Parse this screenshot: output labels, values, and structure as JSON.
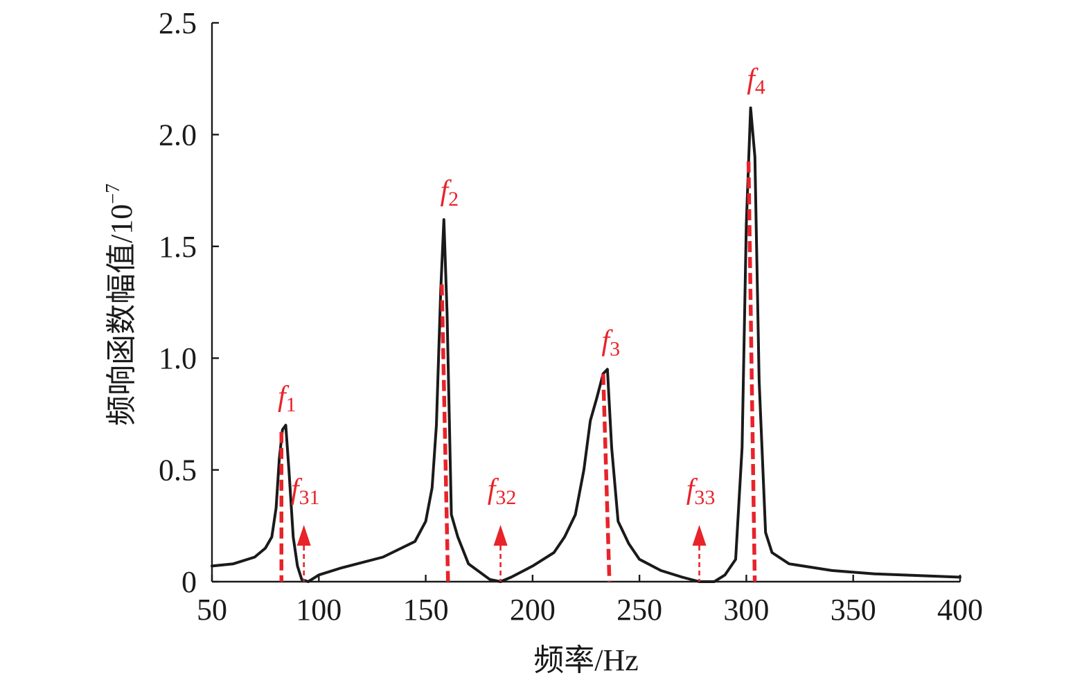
{
  "chart_data": {
    "type": "line",
    "xlabel": "频率/Hz",
    "ylabel": "频响函数幅值/10",
    "ylabel_exponent": "−7",
    "xlim": [
      50,
      400
    ],
    "ylim": [
      0,
      2.5
    ],
    "x_ticks": [
      "50",
      "100",
      "150",
      "200",
      "250",
      "300",
      "350",
      "400"
    ],
    "y_ticks": [
      "0",
      "0.5",
      "1.0",
      "1.5",
      "2.0",
      "2.5"
    ],
    "grid": false,
    "series": [
      {
        "x": [
          50,
          60,
          70,
          75,
          78,
          80,
          81.5,
          83,
          84.5,
          86,
          88,
          90,
          92,
          95,
          100,
          110,
          130,
          145,
          150,
          153,
          155,
          157,
          158.5,
          160,
          162,
          165,
          170,
          180,
          185,
          190,
          200,
          210,
          215,
          220,
          224,
          227,
          230,
          233,
          235,
          237,
          240,
          245,
          250,
          260,
          270,
          278,
          285,
          290,
          295,
          298,
          300,
          302,
          304,
          306,
          309,
          312,
          320,
          340,
          360,
          400
        ],
        "y": [
          0.07,
          0.08,
          0.11,
          0.15,
          0.2,
          0.33,
          0.55,
          0.68,
          0.7,
          0.5,
          0.2,
          0.07,
          0.01,
          0.0,
          0.03,
          0.06,
          0.11,
          0.18,
          0.27,
          0.42,
          0.7,
          1.3,
          1.62,
          1.2,
          0.3,
          0.2,
          0.08,
          0.01,
          0.0,
          0.02,
          0.07,
          0.13,
          0.2,
          0.3,
          0.5,
          0.72,
          0.82,
          0.93,
          0.95,
          0.6,
          0.27,
          0.17,
          0.1,
          0.05,
          0.02,
          0.0,
          0.0,
          0.03,
          0.1,
          0.6,
          1.6,
          2.12,
          1.9,
          0.9,
          0.22,
          0.13,
          0.08,
          0.05,
          0.035,
          0.02
        ]
      }
    ],
    "peak_markers": [
      {
        "label": "f",
        "sub": "1",
        "x": 82.5,
        "y": 0.67
      },
      {
        "label": "f",
        "sub": "2",
        "x": 158.5,
        "y": 1.33
      },
      {
        "label": "f",
        "sub": "3",
        "x": 234,
        "y": 0.93
      },
      {
        "label": "f",
        "sub": "4",
        "x": 302,
        "y": 1.88
      }
    ],
    "antiresonance_markers": [
      {
        "label": "f",
        "sub": "31",
        "x": 93
      },
      {
        "label": "f",
        "sub": "32",
        "x": 185
      },
      {
        "label": "f",
        "sub": "33",
        "x": 278
      }
    ],
    "colors": {
      "curve": "#1a1a1a",
      "markers": "#e8232a"
    }
  }
}
